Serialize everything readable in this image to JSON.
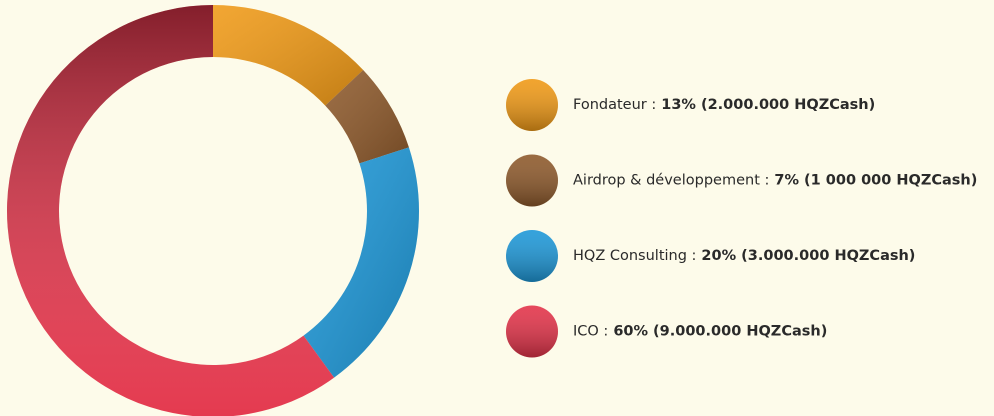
{
  "chart_data": {
    "type": "pie",
    "categories": [
      "Fondateur :",
      "Airdrop & développement :",
      "HQZ Consulting :",
      "ICO :"
    ],
    "values": [
      13,
      7,
      20,
      60
    ],
    "value_labels": [
      "13%",
      "7%",
      "20%",
      "60%"
    ],
    "details": [
      "(2.000.000 HQZCash)",
      "(1 000 000 HQZCash)",
      "(3.000.000 HQZCash)",
      "(9.000.000 HQZCash)"
    ],
    "colors": [
      "#f09a17",
      "#8e5a2c",
      "#1e98d8",
      "#e3344a"
    ]
  }
}
